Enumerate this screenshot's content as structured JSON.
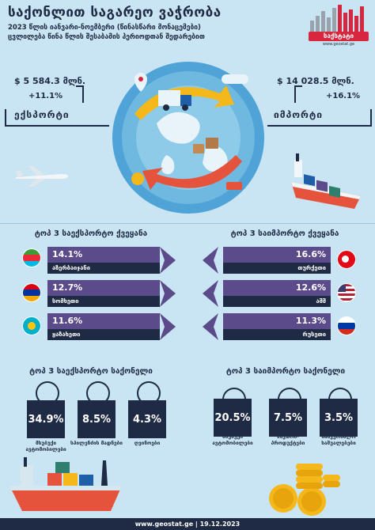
{
  "header": {
    "title": "საქონლით საგარეო ვაჭრობა",
    "subtitle1": "2023 წლის იანვარი-ნოემბერი (წინასწარი მონაცემები)",
    "subtitle2": "ცვლილება წინა წლის შესაბამის პერიოდთან შედარებით",
    "logo_text": "საქსტატი",
    "logo_url": "www.geostat.ge"
  },
  "exports": {
    "value": "$ 5 584.3 მლნ.",
    "change": "+11.1%",
    "label": "ექსპორტი"
  },
  "imports": {
    "value": "$ 14 028.5 მლნ.",
    "change": "+16.1%",
    "label": "იმპორტი"
  },
  "top_export_countries": {
    "title": "ტოპ 3 საექსპორტო ქვეყანა",
    "items": [
      {
        "pct": "14.1%",
        "name": "აზერბაიჯანი",
        "flag": "azerbaijan"
      },
      {
        "pct": "12.7%",
        "name": "სომხეთი",
        "flag": "armenia"
      },
      {
        "pct": "11.6%",
        "name": "ყაზახეთი",
        "flag": "kazakhstan"
      }
    ]
  },
  "top_import_countries": {
    "title": "ტოპ 3 საიმპორტო ქვეყანა",
    "items": [
      {
        "pct": "16.6%",
        "name": "თურქეთი",
        "flag": "turkey"
      },
      {
        "pct": "12.6%",
        "name": "აშშ",
        "flag": "usa"
      },
      {
        "pct": "11.3%",
        "name": "რუსეთი",
        "flag": "russia"
      }
    ]
  },
  "top_export_goods": {
    "title": "ტოპ 3 საექსპორტო საქონელი",
    "items": [
      {
        "pct": "34.9%",
        "label": "მსუბუქი ავტომობილები",
        "icon": "car-icon"
      },
      {
        "pct": "8.5%",
        "label": "სპილენძის მადნები",
        "icon": "ore-icon"
      },
      {
        "pct": "4.3%",
        "label": "ღვინოები",
        "icon": "wine-icon"
      }
    ]
  },
  "top_import_goods": {
    "title": "ტოპ 3 საიმპორტო საქონელი",
    "items": [
      {
        "pct": "20.5%",
        "label": "მსუბუქი ავტომობილები",
        "icon": "car-icon"
      },
      {
        "pct": "7.5%",
        "label": "ნავთობ-პროდუქტები",
        "icon": "oil-icon"
      },
      {
        "pct": "3.5%",
        "label": "სამკურნალო საშუალებები",
        "icon": "medicine-icon"
      }
    ]
  },
  "footer": {
    "text": "www.geostat.ge | 19.12.2023"
  },
  "colors": {
    "navy": "#1f2a44",
    "purple": "#5b4b8a",
    "bg": "#c9e4f2",
    "accent": "#d7263d"
  }
}
